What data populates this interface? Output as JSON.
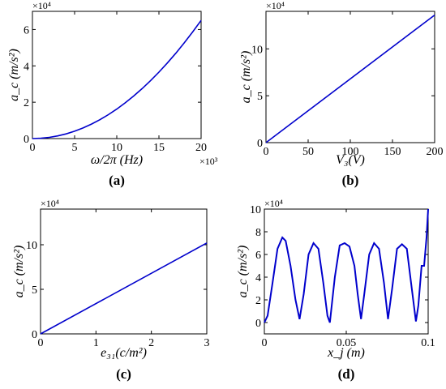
{
  "chart_data": [
    {
      "id": "a",
      "type": "line",
      "panel_label": "(a)",
      "xlabel": "ω/2π (Hz)",
      "ylabel": "a_c (m/s²)",
      "x_multiplier": "×10³",
      "y_multiplier": "×10⁴",
      "xlim": [
        0,
        20
      ],
      "ylim": [
        0,
        7
      ],
      "x_ticks": [
        0,
        5,
        10,
        15,
        20
      ],
      "y_ticks": [
        0,
        2,
        4,
        6
      ],
      "series": [
        {
          "color": "#0000cc",
          "x": [
            0,
            1,
            2,
            3,
            4,
            5,
            6,
            7,
            8,
            9,
            10,
            11,
            12,
            13,
            14,
            15,
            16,
            17,
            18,
            19,
            20
          ],
          "y": [
            0,
            0.016,
            0.065,
            0.146,
            0.26,
            0.406,
            0.585,
            0.796,
            1.04,
            1.316,
            1.625,
            1.966,
            2.34,
            2.746,
            3.185,
            3.656,
            4.16,
            4.696,
            5.265,
            5.866,
            6.5
          ]
        }
      ]
    },
    {
      "id": "b",
      "type": "line",
      "panel_label": "(b)",
      "xlabel": "V₃(V)",
      "ylabel": "a_c (m/s²)",
      "x_multiplier": "",
      "y_multiplier": "×10⁴",
      "xlim": [
        0,
        200
      ],
      "ylim": [
        0,
        14
      ],
      "x_ticks": [
        0,
        50,
        100,
        150,
        200
      ],
      "y_ticks": [
        0,
        5,
        10
      ],
      "series": [
        {
          "color": "#0000cc",
          "x": [
            0,
            200
          ],
          "y": [
            0,
            13.6
          ]
        }
      ]
    },
    {
      "id": "c",
      "type": "line",
      "panel_label": "(c)",
      "xlabel": "e₃₁(c/m²)",
      "ylabel": "a_c (m/s²)",
      "x_multiplier": "",
      "y_multiplier": "×10⁴",
      "xlim": [
        0,
        3
      ],
      "ylim": [
        0,
        14
      ],
      "x_ticks": [
        0,
        1,
        2,
        3
      ],
      "y_ticks": [
        0,
        5,
        10
      ],
      "series": [
        {
          "color": "#0000cc",
          "x": [
            0,
            3
          ],
          "y": [
            0,
            10.2
          ]
        }
      ]
    },
    {
      "id": "d",
      "type": "line",
      "panel_label": "(d)",
      "xlabel": "x_j (m)",
      "ylabel": "a_c (m/s²)",
      "x_multiplier": "",
      "y_multiplier": "×10⁴",
      "xlim": [
        0,
        0.1
      ],
      "ylim": [
        -1,
        10
      ],
      "x_ticks": [
        0,
        0.05,
        0.1
      ],
      "x_tick_labels": [
        "0",
        "0.05",
        "0.1"
      ],
      "y_ticks": [
        0,
        2,
        4,
        6,
        8,
        10
      ],
      "series": [
        {
          "color": "#0000cc",
          "x": [
            0,
            0.002,
            0.005,
            0.008,
            0.011,
            0.013,
            0.016,
            0.019,
            0.0215,
            0.024,
            0.027,
            0.03,
            0.033,
            0.036,
            0.0385,
            0.04,
            0.043,
            0.046,
            0.049,
            0.052,
            0.055,
            0.057,
            0.059,
            0.061,
            0.064,
            0.067,
            0.07,
            0.073,
            0.0755,
            0.078,
            0.081,
            0.084,
            0.087,
            0.09,
            0.0925,
            0.094,
            0.096,
            0.0975,
            0.099,
            0.1
          ],
          "y": [
            0,
            0.6,
            3.5,
            6.5,
            7.5,
            7.2,
            5.0,
            2.0,
            0.3,
            2.5,
            6.0,
            7.0,
            6.5,
            3.5,
            0.6,
            0.0,
            4.0,
            6.8,
            7.0,
            6.7,
            5.0,
            2.5,
            0.3,
            2.5,
            6.0,
            7.0,
            6.5,
            3.5,
            0.3,
            3.0,
            6.5,
            6.9,
            6.5,
            3.0,
            0.1,
            1.5,
            5.0,
            5.0,
            7.5,
            10.0
          ]
        }
      ]
    }
  ]
}
